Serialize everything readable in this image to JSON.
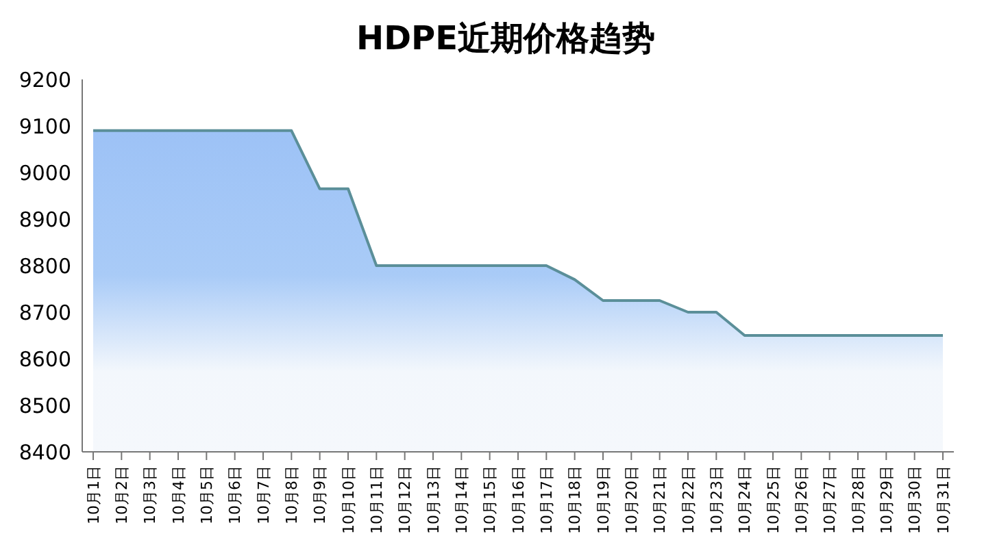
{
  "chart_data": {
    "type": "area",
    "title": "HDPE近期价格趋势",
    "categories": [
      "10月1日",
      "10月2日",
      "10月3日",
      "10月4日",
      "10月5日",
      "10月6日",
      "10月7日",
      "10月8日",
      "10月9日",
      "10月10日",
      "10月11日",
      "10月12日",
      "10月13日",
      "10月14日",
      "10月15日",
      "10月16日",
      "10月17日",
      "10月18日",
      "10月19日",
      "10月20日",
      "10月21日",
      "10月22日",
      "10月23日",
      "10月24日",
      "10月25日",
      "10月26日",
      "10月27日",
      "10月28日",
      "10月29日",
      "10月30日",
      "10月31日"
    ],
    "series": [
      {
        "color": "#5b8f99",
        "values": [
          9090,
          9090,
          9090,
          9090,
          9090,
          9090,
          9090,
          9090,
          8965,
          8965,
          8800,
          8800,
          8800,
          8800,
          8800,
          8800,
          8800,
          8770,
          8725,
          8725,
          8725,
          8700,
          8700,
          8650,
          8650,
          8650,
          8650,
          8650,
          8650,
          8650,
          8650
        ]
      }
    ],
    "ylim": [
      8400,
      9200
    ],
    "yticks": [
      8400,
      8500,
      8600,
      8700,
      8800,
      8900,
      9000,
      9100,
      9200
    ],
    "grid": false
  }
}
